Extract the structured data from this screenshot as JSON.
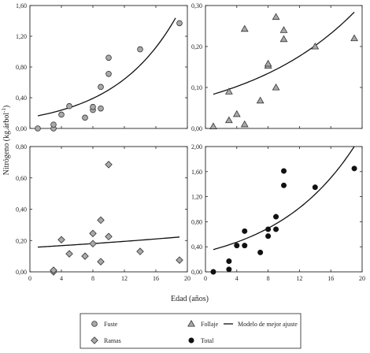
{
  "chart_data": {
    "type": "scatter",
    "xlabel": "Edad (años)",
    "ylabel_main": "Nitrógeno (kg.árbol",
    "ylabel_sup": "-1",
    "ylabel_close": ")",
    "xlim": [
      0,
      20
    ],
    "xticks": [
      0,
      4,
      8,
      12,
      16,
      20
    ],
    "xtick_labels": [
      "0",
      "4",
      "8",
      "12",
      "16",
      "20"
    ],
    "panels": [
      {
        "id": "fuste",
        "series_name": "Fuste",
        "marker": "circle",
        "ylim": [
          0,
          1.6
        ],
        "yticks": [
          0,
          0.4,
          0.8,
          1.2,
          1.6
        ],
        "ytick_labels": [
          "0,00",
          "0,40",
          "0,80",
          "1,20",
          "1,60"
        ],
        "points": [
          [
            1,
            0.0
          ],
          [
            3,
            0.0
          ],
          [
            3,
            0.05
          ],
          [
            4,
            0.18
          ],
          [
            5,
            0.29
          ],
          [
            7,
            0.14
          ],
          [
            8,
            0.24
          ],
          [
            8,
            0.28
          ],
          [
            9,
            0.26
          ],
          [
            9,
            0.54
          ],
          [
            10,
            0.71
          ],
          [
            10,
            0.92
          ],
          [
            14,
            1.03
          ],
          [
            19,
            1.37
          ]
        ],
        "fit": {
          "a": 0.145,
          "b": 0.124,
          "x_range": [
            1,
            18.5
          ]
        }
      },
      {
        "id": "follaje",
        "series_name": "Follaje",
        "marker": "triangle",
        "ylim": [
          0,
          0.3
        ],
        "yticks": [
          0,
          0.1,
          0.2,
          0.3
        ],
        "ytick_labels": [
          "0,00",
          "0,10",
          "0,20",
          "0,30"
        ],
        "points": [
          [
            1,
            0.005
          ],
          [
            3,
            0.02
          ],
          [
            3,
            0.09
          ],
          [
            4,
            0.035
          ],
          [
            5,
            0.01
          ],
          [
            5,
            0.243
          ],
          [
            7,
            0.068
          ],
          [
            8,
            0.153
          ],
          [
            8,
            0.158
          ],
          [
            9,
            0.1
          ],
          [
            9,
            0.272
          ],
          [
            10,
            0.218
          ],
          [
            10,
            0.24
          ],
          [
            14,
            0.2
          ],
          [
            19,
            0.22
          ]
        ],
        "fit": {
          "a": 0.078,
          "b": 0.068,
          "x_range": [
            1,
            19
          ]
        }
      },
      {
        "id": "ramas",
        "series_name": "Ramas",
        "marker": "diamond",
        "ylim": [
          0,
          0.8
        ],
        "yticks": [
          0,
          0.2,
          0.4,
          0.6,
          0.8
        ],
        "ytick_labels": [
          "0,00",
          "0,20",
          "0,40",
          "0,60",
          "0,80"
        ],
        "points": [
          [
            3,
            0.0
          ],
          [
            3,
            0.01
          ],
          [
            4,
            0.205
          ],
          [
            5,
            0.115
          ],
          [
            7,
            0.1
          ],
          [
            8,
            0.18
          ],
          [
            8,
            0.245
          ],
          [
            9,
            0.065
          ],
          [
            9,
            0.33
          ],
          [
            10,
            0.225
          ],
          [
            10,
            0.685
          ],
          [
            14,
            0.13
          ],
          [
            19,
            0.075
          ]
        ],
        "fit": {
          "a": 0.155,
          "b": 0.019,
          "x_range": [
            1,
            19
          ]
        }
      },
      {
        "id": "total",
        "series_name": "Total",
        "marker": "filled-circle",
        "ylim": [
          0,
          2.0
        ],
        "yticks": [
          0,
          0.4,
          0.8,
          1.2,
          1.6,
          2.0
        ],
        "ytick_labels": [
          "0,00",
          "0,40",
          "0,80",
          "1,20",
          "1,60",
          "2,00"
        ],
        "points": [
          [
            1,
            0.0
          ],
          [
            3,
            0.04
          ],
          [
            3,
            0.17
          ],
          [
            4,
            0.42
          ],
          [
            5,
            0.42
          ],
          [
            5,
            0.65
          ],
          [
            7,
            0.31
          ],
          [
            8,
            0.57
          ],
          [
            8,
            0.68
          ],
          [
            9,
            0.88
          ],
          [
            9,
            0.68
          ],
          [
            10,
            1.38
          ],
          [
            10,
            1.61
          ],
          [
            14,
            1.35
          ],
          [
            19,
            1.65
          ]
        ],
        "fit": {
          "a": 0.323,
          "b": 0.096,
          "x_range": [
            1,
            19
          ]
        }
      }
    ],
    "legend": [
      {
        "label": "Fuste",
        "marker": "circle"
      },
      {
        "label": "Follaje",
        "marker": "triangle"
      },
      {
        "label": "Modelo de mejor ajuste",
        "marker": "line"
      },
      {
        "label": "Ramas",
        "marker": "diamond"
      },
      {
        "label": "Total",
        "marker": "filled-circle"
      }
    ],
    "legend_placement": "bottom-center",
    "grid": false
  }
}
